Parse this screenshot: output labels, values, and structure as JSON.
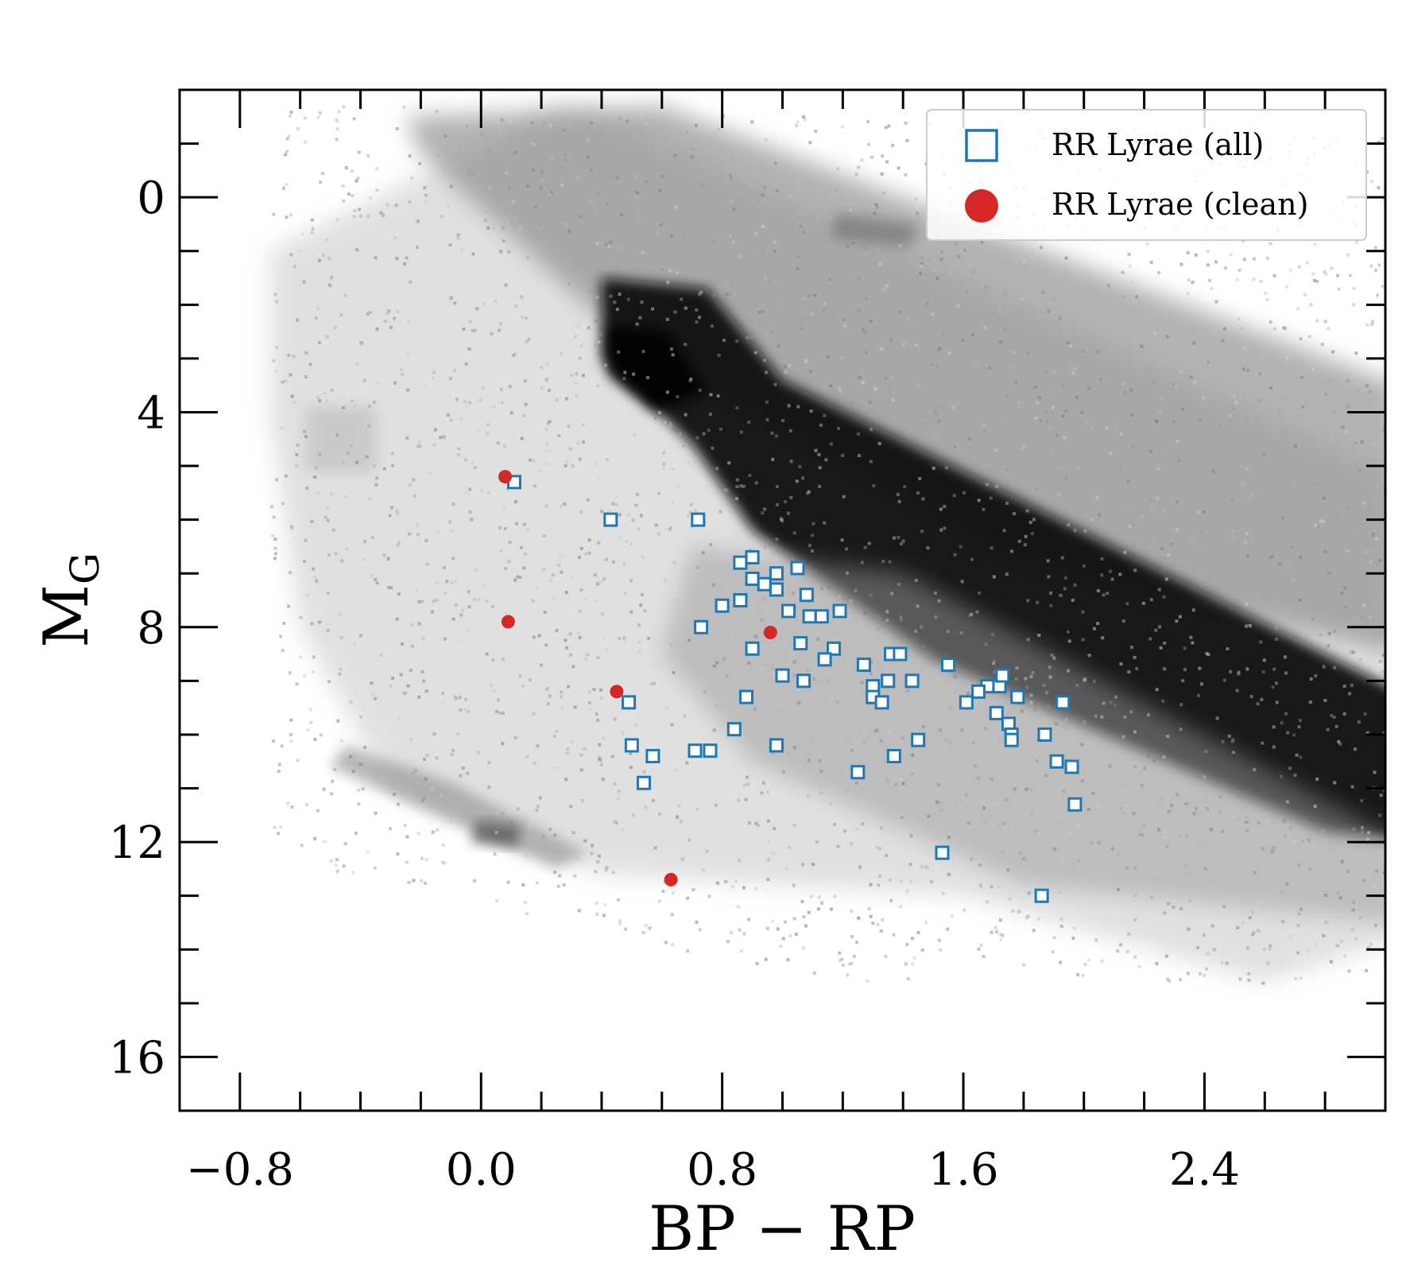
{
  "chart_data": {
    "type": "scatter",
    "title": "",
    "xlabel": "BP − RP",
    "ylabel_main": "M",
    "ylabel_sub": "G",
    "xlim": [
      -1.0,
      3.0
    ],
    "ylim": [
      17.0,
      -2.0
    ],
    "y_inverted": true,
    "xticks_major": [
      -0.8,
      0.0,
      0.8,
      1.6,
      2.4
    ],
    "xtick_labels": [
      "−0.8",
      "0.0",
      "0.8",
      "1.6",
      "2.4"
    ],
    "xticks_minor_step": 0.2,
    "yticks_major": [
      0,
      4,
      8,
      12,
      16
    ],
    "ytick_labels": [
      "0",
      "4",
      "8",
      "12",
      "16"
    ],
    "yticks_minor_step": 1,
    "grid": false,
    "legend_position": "top-right",
    "background_density": "grey 2D histogram of field stars (main sequence, giant branch, white dwarf sequence)",
    "series": [
      {
        "name": "RR Lyrae (all)",
        "marker": "open-square",
        "color": "#1f77b4",
        "points": [
          [
            0.11,
            5.3
          ],
          [
            0.43,
            6.0
          ],
          [
            0.72,
            6.0
          ],
          [
            0.86,
            6.8
          ],
          [
            0.9,
            6.7
          ],
          [
            0.9,
            7.1
          ],
          [
            0.94,
            7.2
          ],
          [
            0.98,
            7.3
          ],
          [
            0.98,
            7.0
          ],
          [
            1.05,
            6.9
          ],
          [
            0.8,
            7.6
          ],
          [
            0.86,
            7.5
          ],
          [
            1.02,
            7.7
          ],
          [
            1.08,
            7.4
          ],
          [
            1.09,
            7.8
          ],
          [
            1.13,
            7.8
          ],
          [
            1.19,
            7.7
          ],
          [
            0.73,
            8.0
          ],
          [
            0.9,
            8.4
          ],
          [
            1.06,
            8.3
          ],
          [
            1.17,
            8.4
          ],
          [
            1.27,
            8.7
          ],
          [
            1.36,
            8.5
          ],
          [
            1.39,
            8.5
          ],
          [
            1.14,
            8.6
          ],
          [
            1.0,
            8.9
          ],
          [
            1.07,
            9.0
          ],
          [
            1.3,
            9.1
          ],
          [
            1.3,
            9.3
          ],
          [
            1.33,
            9.4
          ],
          [
            1.35,
            9.0
          ],
          [
            1.43,
            9.0
          ],
          [
            1.55,
            8.7
          ],
          [
            1.68,
            9.1
          ],
          [
            1.72,
            9.1
          ],
          [
            1.73,
            8.9
          ],
          [
            1.78,
            9.3
          ],
          [
            1.61,
            9.4
          ],
          [
            1.65,
            9.2
          ],
          [
            1.71,
            9.6
          ],
          [
            1.75,
            9.8
          ],
          [
            1.76,
            10.0
          ],
          [
            1.76,
            10.1
          ],
          [
            1.93,
            9.4
          ],
          [
            1.87,
            10.0
          ],
          [
            0.88,
            9.3
          ],
          [
            0.49,
            9.4
          ],
          [
            0.84,
            9.9
          ],
          [
            0.5,
            10.2
          ],
          [
            0.57,
            10.4
          ],
          [
            0.71,
            10.3
          ],
          [
            0.76,
            10.3
          ],
          [
            0.98,
            10.2
          ],
          [
            1.45,
            10.1
          ],
          [
            1.37,
            10.4
          ],
          [
            1.25,
            10.7
          ],
          [
            1.91,
            10.5
          ],
          [
            1.96,
            10.6
          ],
          [
            0.54,
            10.9
          ],
          [
            1.97,
            11.3
          ],
          [
            1.53,
            12.2
          ],
          [
            1.86,
            13.0
          ]
        ]
      },
      {
        "name": "RR Lyrae (clean)",
        "marker": "filled-circle",
        "color": "#d62728",
        "points": [
          [
            0.08,
            5.2
          ],
          [
            0.09,
            7.9
          ],
          [
            0.45,
            9.2
          ],
          [
            0.63,
            12.7
          ],
          [
            0.96,
            8.1
          ]
        ]
      }
    ]
  }
}
